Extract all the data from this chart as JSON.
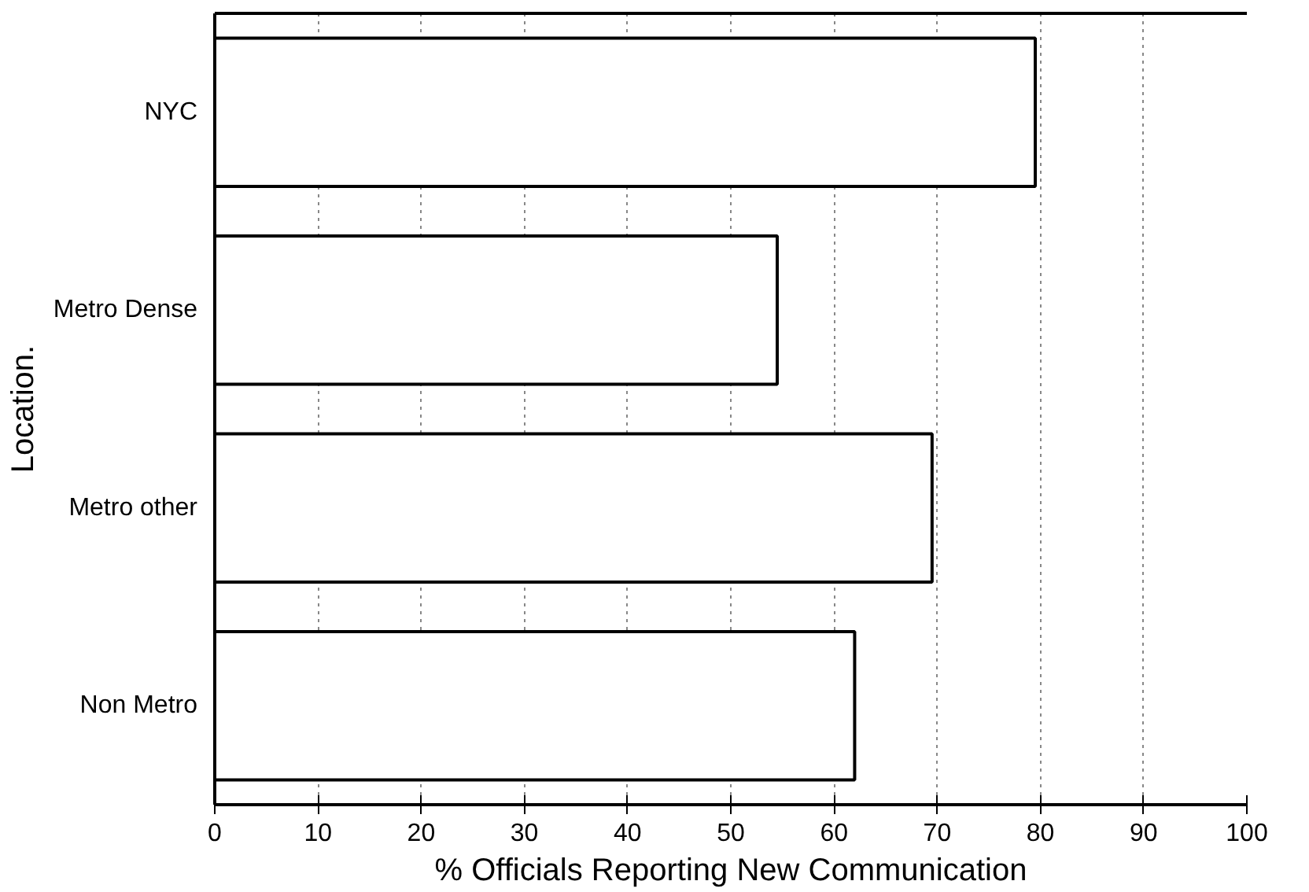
{
  "chart_data": {
    "type": "bar",
    "orientation": "horizontal",
    "xlabel": "% Officials Reporting New Communication",
    "ylabel": "Location.",
    "categories": [
      "NYC",
      "Metro Dense",
      "Metro other",
      "Non Metro"
    ],
    "values": [
      79.5,
      54.5,
      69.5,
      62
    ],
    "color": "#ffffff",
    "xlim": [
      0,
      100
    ],
    "xticks": [
      0,
      10,
      20,
      30,
      40,
      50,
      60,
      70,
      80,
      90,
      100
    ],
    "grid": "x"
  }
}
